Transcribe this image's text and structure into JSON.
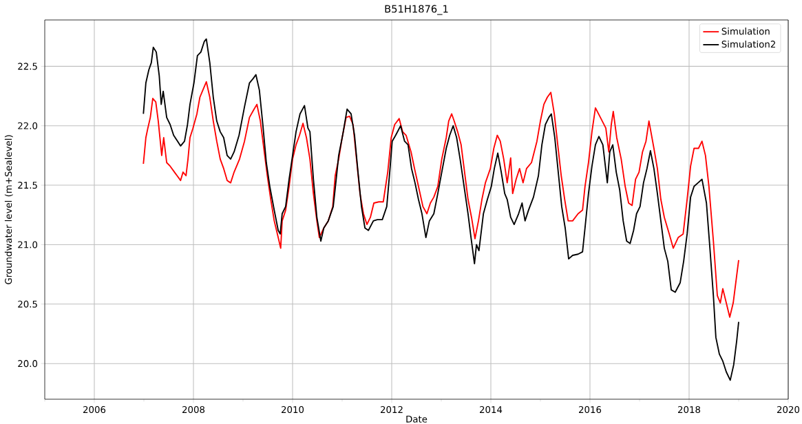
{
  "chart_data": {
    "type": "line",
    "title": "B51H1876_1",
    "xlabel": "Date",
    "ylabel": "Groundwater level (m+Sealevel)",
    "xlim": [
      2005,
      2020
    ],
    "xticks": [
      {
        "value": 2005,
        "label": null
      },
      2006,
      {
        "value": 2007,
        "label": null
      },
      2008,
      {
        "value": 2009,
        "label": null
      },
      2010,
      {
        "value": 2011,
        "label": null
      },
      2012,
      {
        "value": 2013,
        "label": null
      },
      2014,
      {
        "value": 2015,
        "label": null
      },
      2016,
      {
        "value": 2017,
        "label": null
      },
      2018,
      {
        "value": 2019,
        "label": null
      },
      2020
    ],
    "ylim": [
      19.7,
      22.89
    ],
    "yticks": [
      {
        "value": 20,
        "label": "20.0"
      },
      {
        "value": 20.5,
        "label": "20.5"
      },
      {
        "value": 21,
        "label": "21.0"
      },
      {
        "value": 21.5,
        "label": "21.5"
      },
      {
        "value": 22,
        "label": "22.0"
      },
      {
        "value": 22.5,
        "label": "22.5"
      }
    ],
    "grid": true,
    "legend": "top right",
    "marker": "none",
    "line_style": "solid",
    "series": [
      {
        "name": "Simulation",
        "color": "#ff0000",
        "x": [
          2006.99,
          2007.04,
          2007.08,
          2007.13,
          2007.18,
          2007.24,
          2007.29,
          2007.36,
          2007.4,
          2007.46,
          2007.53,
          2007.6,
          2007.67,
          2007.74,
          2007.79,
          2007.85,
          2007.89,
          2007.93,
          2007.99,
          2008.07,
          2008.13,
          2008.19,
          2008.26,
          2008.33,
          2008.4,
          2008.47,
          2008.54,
          2008.61,
          2008.68,
          2008.75,
          2008.82,
          2008.93,
          2009.03,
          2009.13,
          2009.21,
          2009.28,
          2009.35,
          2009.42,
          2009.49,
          2009.56,
          2009.63,
          2009.71,
          2009.76,
          2009.79,
          2009.86,
          2009.93,
          2010.0,
          2010.07,
          2010.14,
          2010.21,
          2010.28,
          2010.35,
          2010.42,
          2010.49,
          2010.54,
          2010.63,
          2010.72,
          2010.81,
          2010.86,
          2010.93,
          2011.0,
          2011.08,
          2011.15,
          2011.22,
          2011.29,
          2011.36,
          2011.43,
          2011.5,
          2011.57,
          2011.64,
          2011.74,
          2011.83,
          2011.92,
          2011.99,
          2012.06,
          2012.15,
          2012.22,
          2012.29,
          2012.39,
          2012.46,
          2012.54,
          2012.63,
          2012.71,
          2012.78,
          2012.85,
          2012.93,
          2013.01,
          2013.1,
          2013.15,
          2013.21,
          2013.26,
          2013.33,
          2013.4,
          2013.47,
          2013.54,
          2013.61,
          2013.68,
          2013.75,
          2013.82,
          2013.89,
          2013.99,
          2014.06,
          2014.13,
          2014.19,
          2014.26,
          2014.33,
          2014.4,
          2014.44,
          2014.51,
          2014.58,
          2014.65,
          2014.72,
          2014.82,
          2014.93,
          2015.0,
          2015.07,
          2015.14,
          2015.21,
          2015.28,
          2015.35,
          2015.42,
          2015.49,
          2015.56,
          2015.65,
          2015.76,
          2015.85,
          2015.9,
          2015.97,
          2016.04,
          2016.11,
          2016.21,
          2016.32,
          2016.38,
          2016.43,
          2016.47,
          2016.54,
          2016.63,
          2016.71,
          2016.78,
          2016.85,
          2016.92,
          2016.99,
          2017.06,
          2017.13,
          2017.19,
          2017.29,
          2017.36,
          2017.43,
          2017.5,
          2017.6,
          2017.68,
          2017.78,
          2017.88,
          2017.96,
          2018.03,
          2018.1,
          2018.19,
          2018.26,
          2018.33,
          2018.4,
          2018.49,
          2018.57,
          2018.63,
          2018.68,
          2018.75,
          2018.82,
          2018.89,
          2018.96,
          2019.0
        ],
        "values": [
          21.68,
          21.9,
          21.98,
          22.07,
          22.23,
          22.2,
          22.04,
          21.75,
          21.9,
          21.69,
          21.66,
          21.62,
          21.58,
          21.54,
          21.61,
          21.58,
          21.72,
          21.9,
          21.98,
          22.1,
          22.24,
          22.3,
          22.37,
          22.24,
          22.04,
          21.87,
          21.72,
          21.64,
          21.54,
          21.52,
          21.61,
          21.72,
          21.87,
          22.07,
          22.13,
          22.18,
          22.04,
          21.81,
          21.58,
          21.38,
          21.2,
          21.06,
          20.97,
          21.2,
          21.29,
          21.49,
          21.72,
          21.84,
          21.92,
          22.02,
          21.9,
          21.72,
          21.43,
          21.2,
          21.06,
          21.14,
          21.2,
          21.32,
          21.58,
          21.72,
          21.9,
          22.07,
          22.08,
          22.01,
          21.72,
          21.43,
          21.26,
          21.17,
          21.23,
          21.35,
          21.36,
          21.36,
          21.61,
          21.9,
          22.01,
          22.06,
          21.95,
          21.92,
          21.78,
          21.64,
          21.49,
          21.32,
          21.26,
          21.35,
          21.4,
          21.49,
          21.72,
          21.9,
          22.04,
          22.1,
          22.04,
          21.95,
          21.84,
          21.61,
          21.38,
          21.23,
          21.05,
          21.2,
          21.38,
          21.52,
          21.64,
          21.81,
          21.92,
          21.87,
          21.72,
          21.52,
          21.73,
          21.43,
          21.55,
          21.64,
          21.52,
          21.64,
          21.69,
          21.87,
          22.04,
          22.18,
          22.24,
          22.28,
          22.1,
          21.84,
          21.58,
          21.38,
          21.2,
          21.2,
          21.26,
          21.29,
          21.49,
          21.69,
          21.95,
          22.15,
          22.07,
          21.98,
          21.78,
          22.01,
          22.12,
          21.9,
          21.72,
          21.49,
          21.35,
          21.33,
          21.55,
          21.61,
          21.78,
          21.87,
          22.04,
          21.81,
          21.64,
          21.38,
          21.23,
          21.09,
          20.97,
          21.06,
          21.09,
          21.38,
          21.66,
          21.81,
          21.81,
          21.87,
          21.75,
          21.49,
          21.03,
          20.57,
          20.51,
          20.63,
          20.51,
          20.39,
          20.51,
          20.74,
          20.87
        ]
      },
      {
        "name": "Simulation2",
        "color": "#000000",
        "x": [
          2006.99,
          2007.04,
          2007.1,
          2007.15,
          2007.19,
          2007.25,
          2007.31,
          2007.35,
          2007.39,
          2007.46,
          2007.53,
          2007.6,
          2007.68,
          2007.74,
          2007.82,
          2007.88,
          2007.93,
          2008.01,
          2008.08,
          2008.15,
          2008.22,
          2008.26,
          2008.33,
          2008.4,
          2008.47,
          2008.54,
          2008.61,
          2008.68,
          2008.75,
          2008.82,
          2008.92,
          2009.03,
          2009.13,
          2009.21,
          2009.26,
          2009.33,
          2009.4,
          2009.47,
          2009.54,
          2009.63,
          2009.71,
          2009.75,
          2009.79,
          2009.86,
          2009.93,
          2010.0,
          2010.07,
          2010.15,
          2010.24,
          2010.31,
          2010.35,
          2010.42,
          2010.49,
          2010.57,
          2010.63,
          2010.72,
          2010.82,
          2010.88,
          2010.93,
          2011.01,
          2011.1,
          2011.18,
          2011.25,
          2011.32,
          2011.39,
          2011.46,
          2011.53,
          2011.63,
          2011.71,
          2011.81,
          2011.9,
          2011.96,
          2012.01,
          2012.08,
          2012.18,
          2012.26,
          2012.33,
          2012.4,
          2012.47,
          2012.54,
          2012.61,
          2012.69,
          2012.76,
          2012.85,
          2012.93,
          2013.01,
          2013.1,
          2013.17,
          2013.24,
          2013.31,
          2013.38,
          2013.46,
          2013.54,
          2013.6,
          2013.67,
          2013.71,
          2013.76,
          2013.85,
          2013.93,
          2014.01,
          2014.07,
          2014.14,
          2014.21,
          2014.28,
          2014.33,
          2014.4,
          2014.47,
          2014.56,
          2014.63,
          2014.69,
          2014.76,
          2014.86,
          2014.96,
          2015.03,
          2015.1,
          2015.17,
          2015.22,
          2015.29,
          2015.36,
          2015.43,
          2015.5,
          2015.57,
          2015.65,
          2015.76,
          2015.85,
          2015.9,
          2015.97,
          2016.04,
          2016.11,
          2016.18,
          2016.26,
          2016.35,
          2016.4,
          2016.46,
          2016.53,
          2016.6,
          2016.67,
          2016.74,
          2016.81,
          2016.88,
          2016.94,
          2017.01,
          2017.08,
          2017.15,
          2017.22,
          2017.29,
          2017.36,
          2017.43,
          2017.5,
          2017.57,
          2017.64,
          2017.72,
          2017.82,
          2017.89,
          2017.96,
          2018.03,
          2018.1,
          2018.18,
          2018.26,
          2018.35,
          2018.42,
          2018.49,
          2018.54,
          2018.61,
          2018.68,
          2018.75,
          2018.83,
          2018.9,
          2018.96,
          2019.0
        ],
        "values": [
          22.1,
          22.36,
          22.47,
          22.53,
          22.66,
          22.62,
          22.42,
          22.18,
          22.29,
          22.07,
          22.01,
          21.92,
          21.87,
          21.83,
          21.87,
          22.01,
          22.18,
          22.36,
          22.59,
          22.62,
          22.71,
          22.73,
          22.53,
          22.24,
          22.04,
          21.95,
          21.9,
          21.75,
          21.72,
          21.78,
          21.92,
          22.16,
          22.36,
          22.4,
          22.43,
          22.3,
          22.01,
          21.69,
          21.49,
          21.29,
          21.12,
          21.09,
          21.26,
          21.32,
          21.55,
          21.75,
          21.95,
          22.1,
          22.17,
          21.98,
          21.95,
          21.55,
          21.23,
          21.03,
          21.14,
          21.2,
          21.32,
          21.55,
          21.75,
          21.92,
          22.14,
          22.1,
          21.92,
          21.61,
          21.32,
          21.14,
          21.12,
          21.2,
          21.21,
          21.21,
          21.32,
          21.61,
          21.87,
          21.92,
          22.0,
          21.87,
          21.84,
          21.64,
          21.52,
          21.38,
          21.26,
          21.06,
          21.2,
          21.26,
          21.43,
          21.61,
          21.81,
          21.92,
          22.0,
          21.9,
          21.72,
          21.49,
          21.26,
          21.06,
          20.84,
          21.0,
          20.95,
          21.26,
          21.38,
          21.49,
          21.64,
          21.77,
          21.61,
          21.43,
          21.38,
          21.23,
          21.17,
          21.26,
          21.35,
          21.2,
          21.29,
          21.4,
          21.58,
          21.84,
          22.01,
          22.07,
          22.1,
          21.9,
          21.61,
          21.32,
          21.14,
          20.88,
          20.91,
          20.92,
          20.94,
          21.14,
          21.43,
          21.66,
          21.84,
          21.91,
          21.84,
          21.52,
          21.78,
          21.84,
          21.61,
          21.46,
          21.2,
          21.03,
          21.01,
          21.12,
          21.26,
          21.32,
          21.52,
          21.64,
          21.79,
          21.64,
          21.43,
          21.2,
          20.97,
          20.86,
          20.62,
          20.6,
          20.68,
          20.86,
          21.09,
          21.4,
          21.49,
          21.52,
          21.55,
          21.35,
          20.97,
          20.57,
          20.22,
          20.08,
          20.02,
          19.93,
          19.86,
          19.99,
          20.19,
          20.35
        ]
      }
    ]
  }
}
